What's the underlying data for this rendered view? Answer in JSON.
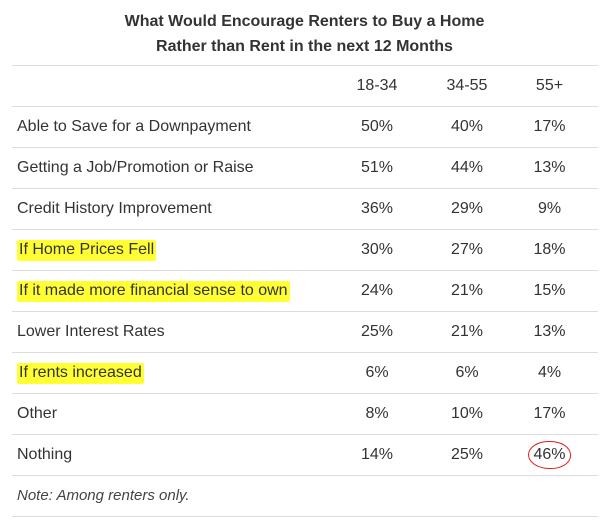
{
  "chart_data": {
    "type": "table",
    "title_lines": [
      "What Would Encourage Renters to Buy a Home",
      "Rather than Rent in the next 12 Months"
    ],
    "columns": [
      "18-34",
      "34-55",
      "55+"
    ],
    "rows": [
      {
        "label": "Able to Save for a Downpayment",
        "values": [
          "50%",
          "40%",
          "17%"
        ],
        "highlight": false,
        "circled": -1
      },
      {
        "label": "Getting a Job/Promotion or Raise",
        "values": [
          "51%",
          "44%",
          "13%"
        ],
        "highlight": false,
        "circled": -1
      },
      {
        "label": "Credit History Improvement",
        "values": [
          "36%",
          "29%",
          "9%"
        ],
        "highlight": false,
        "circled": -1
      },
      {
        "label": "If Home Prices Fell",
        "values": [
          "30%",
          "27%",
          "18%"
        ],
        "highlight": true,
        "circled": -1
      },
      {
        "label": "If it made more financial sense to own",
        "values": [
          "24%",
          "21%",
          "15%"
        ],
        "highlight": true,
        "circled": -1
      },
      {
        "label": "Lower Interest Rates",
        "values": [
          "25%",
          "21%",
          "13%"
        ],
        "highlight": false,
        "circled": -1
      },
      {
        "label": "If rents increased",
        "values": [
          "6%",
          "6%",
          "4%"
        ],
        "highlight": true,
        "circled": -1
      },
      {
        "label": "Other",
        "values": [
          "8%",
          "10%",
          "17%"
        ],
        "highlight": false,
        "circled": -1
      },
      {
        "label": "Nothing",
        "values": [
          "14%",
          "25%",
          "46%"
        ],
        "highlight": false,
        "circled": 2
      }
    ],
    "note": "Note: Among renters only.",
    "highlight_color": "#ffff33",
    "circle_color": "#e02020"
  }
}
